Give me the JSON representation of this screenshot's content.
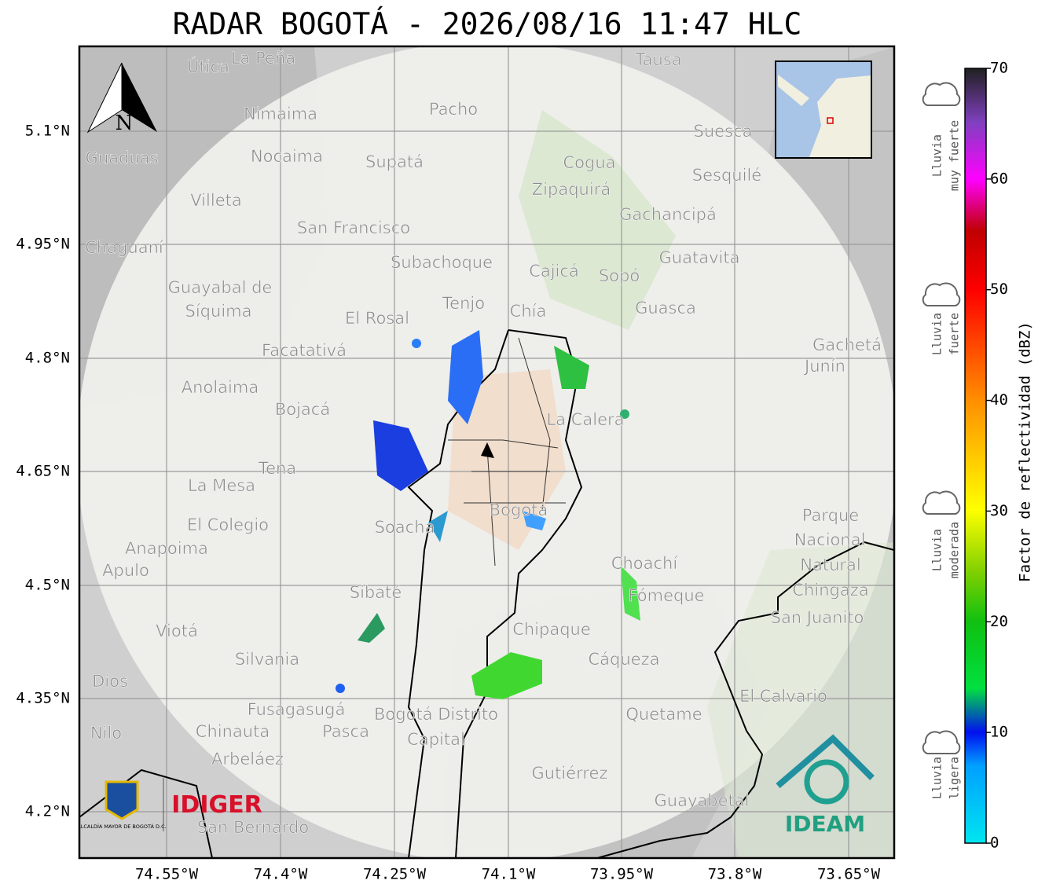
{
  "title": "RADAR BOGOTÁ - 2026/08/16 11:47 HLC",
  "north_label": "N",
  "lat_ticks": [
    "5.1°N",
    "4.95°N",
    "4.8°N",
    "4.65°N",
    "4.5°N",
    "4.35°N",
    "4.2°N"
  ],
  "lon_ticks": [
    "74.55°W",
    "74.4°W",
    "74.25°W",
    "74.1°W",
    "73.95°W",
    "73.8°W",
    "73.65°W"
  ],
  "places": [
    "La Peña",
    "Útica",
    "Tausa",
    "Pacho",
    "Nimaima",
    "Guaduas",
    "Nocaima",
    "Supatá",
    "Cogua",
    "Suesca",
    "Sesquilé",
    "Zipaquirá",
    "Villeta",
    "Gachancipá",
    "San Francisco",
    "Chaguaní",
    "Guatavita",
    "Subachoque",
    "Cajicá",
    "Sopó",
    "Guayabal de",
    "Síquima",
    "Tenjo",
    "Chía",
    "Guasca",
    "El Rosal",
    "Gachetá",
    "Junín",
    "Facatativá",
    "Anolaima",
    "Bojacá",
    "La Calera",
    "Tena",
    "La Mesa",
    "El Colegio",
    "Soacha",
    "Bogotá",
    "Parque",
    "Nacional",
    "Natural",
    "Chingaza",
    "Anapoima",
    "Apulo",
    "Choachí",
    "Fómeque",
    "Sibaté",
    "San Juanito",
    "Viotá",
    "Chipaque",
    "Silvania",
    "Cáqueza",
    "El Calvario",
    "Fusagasugá",
    "Quetame",
    "Nilo",
    "Chinauta",
    "Pasca",
    "Arbeláez",
    "Gutiérrez",
    "Guayabetal",
    "San Bernardo",
    "Dios",
    "Bogotá Distrito",
    "Capital"
  ],
  "logos": {
    "alcaldia": "ALCALDÍA MAYOR DE BOGOTÁ D.C.",
    "idiger": "IDIGER",
    "ideam": "IDEAM"
  },
  "colorbar": {
    "label": "Factor de reflectividad (dBZ)",
    "range": [
      0,
      70
    ],
    "ticks": [
      0,
      10,
      20,
      30,
      40,
      50,
      60,
      70
    ]
  },
  "rain_levels": [
    {
      "lines": [
        "Lluvia",
        "muy fuerte"
      ]
    },
    {
      "lines": [
        "Lluvia",
        "fuerte"
      ]
    },
    {
      "lines": [
        "Lluvia",
        "moderada"
      ]
    },
    {
      "lines": [
        "Lluvia",
        "ligera"
      ]
    }
  ]
}
